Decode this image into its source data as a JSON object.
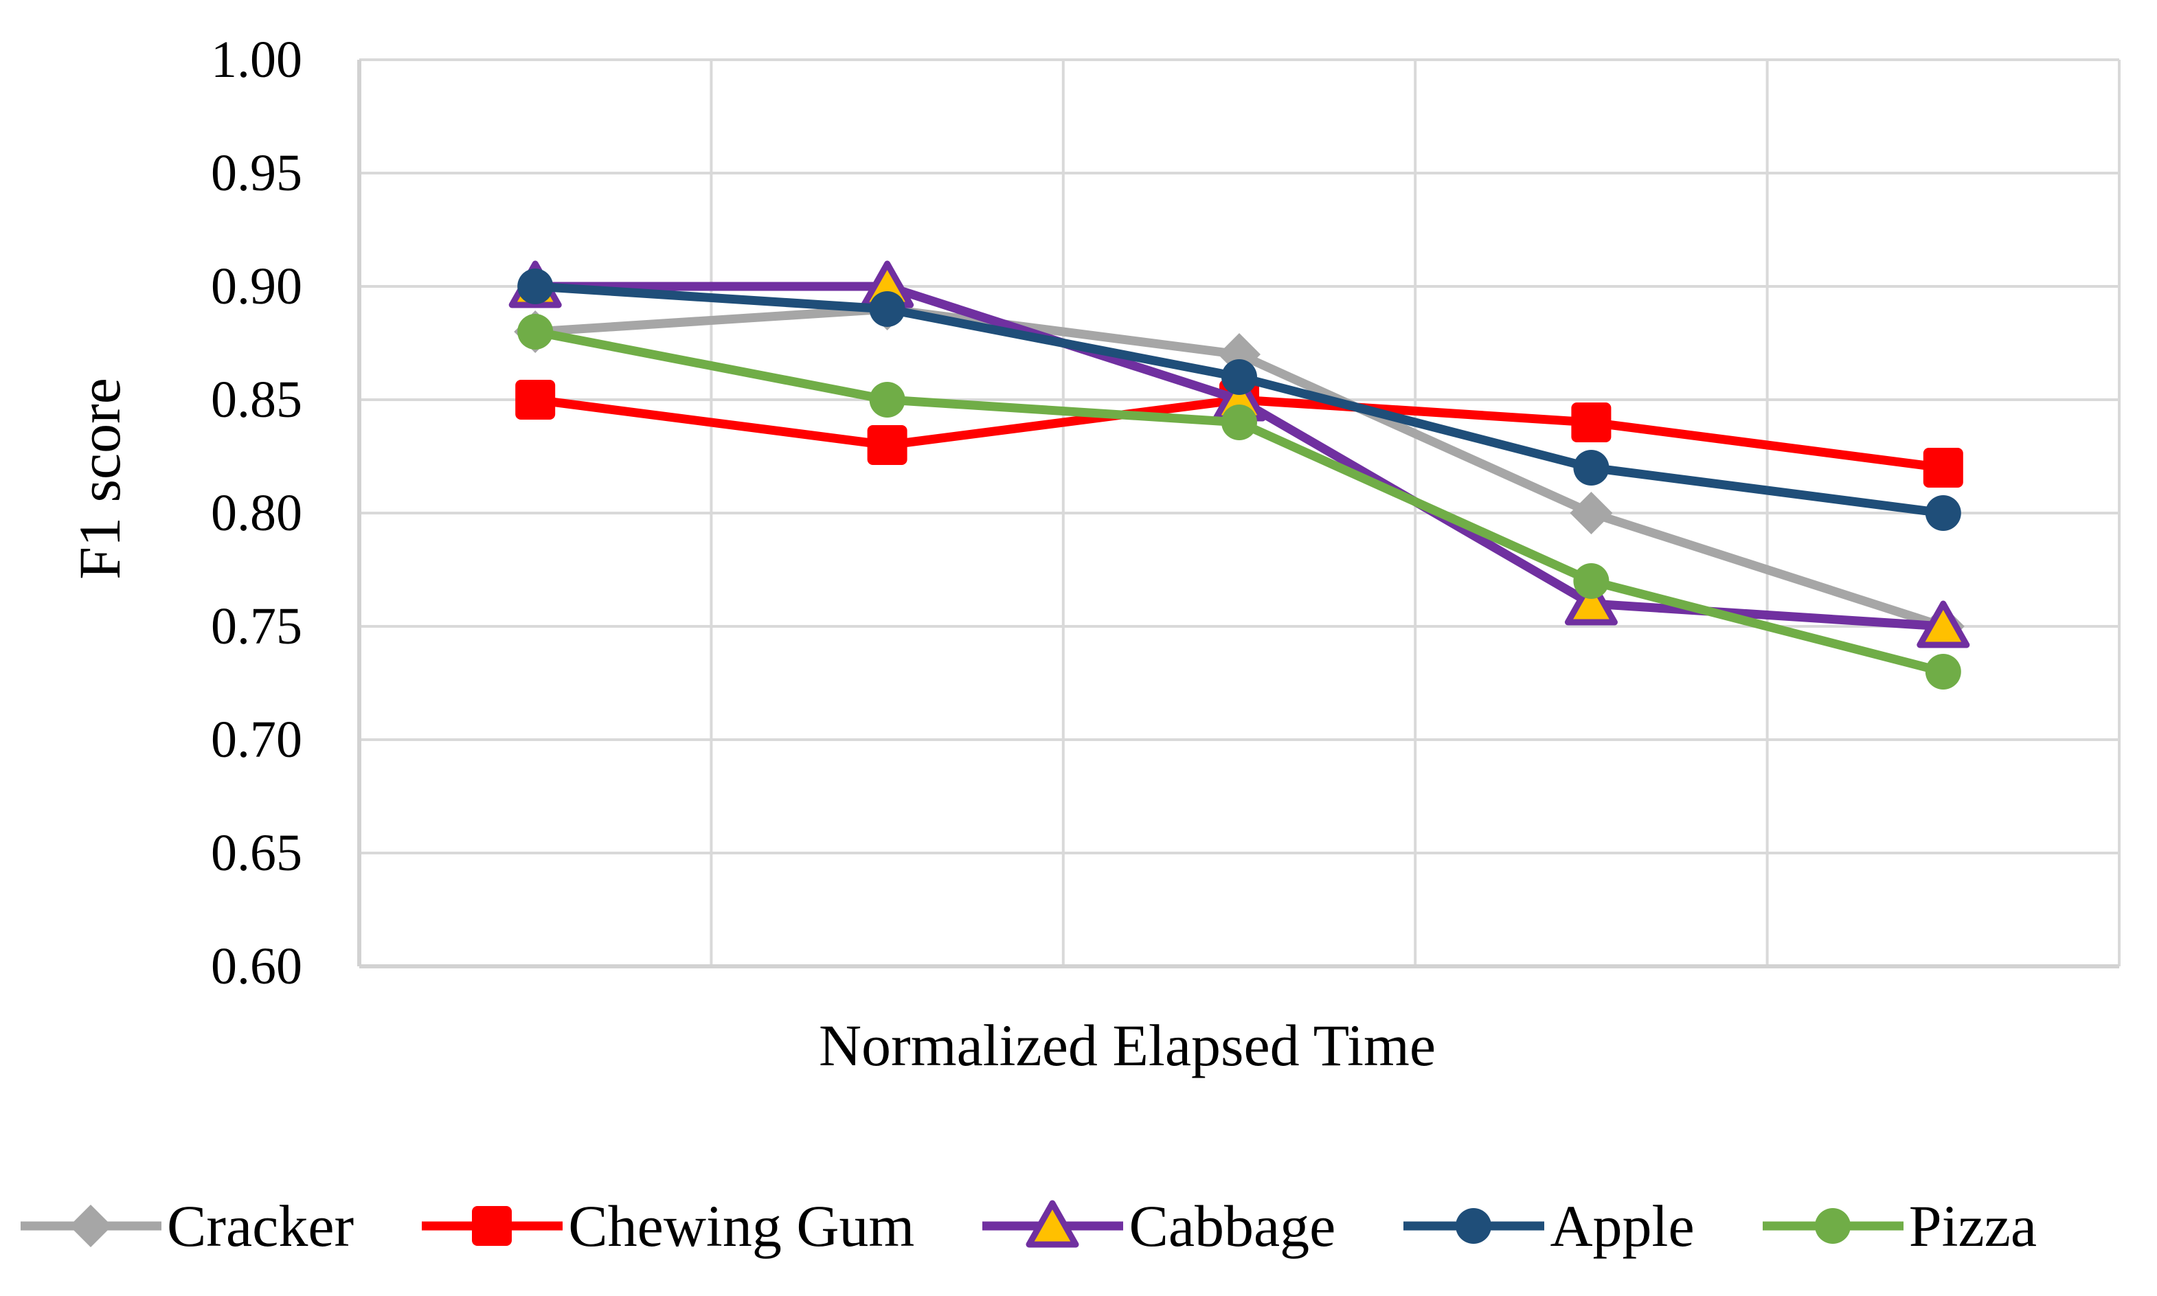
{
  "chart_data": {
    "type": "line",
    "title": "",
    "xlabel": "Normalized Elapsed Time",
    "ylabel": "F1 score",
    "n_points": 5,
    "x_tick_labels": [],
    "x_tick_labels_visible": false,
    "ylim": [
      0.6,
      1.0
    ],
    "y_step": 0.05,
    "y_tick_labels": [
      "0.60",
      "0.65",
      "0.70",
      "0.75",
      "0.80",
      "0.85",
      "0.90",
      "0.95",
      "1.00"
    ],
    "grid": {
      "horizontal": true,
      "vertical": true,
      "color": "#D9D9D9"
    },
    "axis_line_color": "#D2D2D2",
    "legend_position": "bottom",
    "series": [
      {
        "name": "Cracker",
        "marker": "diamond",
        "color": "#A6A6A6",
        "values": [
          0.88,
          0.89,
          0.87,
          0.8,
          0.75
        ]
      },
      {
        "name": "Chewing Gum",
        "marker": "square",
        "color": "#FF0000",
        "values": [
          0.85,
          0.83,
          0.85,
          0.84,
          0.82
        ]
      },
      {
        "name": "Cabbage",
        "marker": "triangle",
        "color": "#7030A0",
        "marker_fill": "#FFC000",
        "values": [
          0.9,
          0.9,
          0.85,
          0.76,
          0.75
        ]
      },
      {
        "name": "Apple",
        "marker": "circle",
        "color": "#1F4E79",
        "values": [
          0.9,
          0.89,
          0.86,
          0.82,
          0.8
        ]
      },
      {
        "name": "Pizza",
        "marker": "circle",
        "color": "#70AD47",
        "values": [
          0.88,
          0.85,
          0.84,
          0.77,
          0.73
        ]
      }
    ]
  }
}
